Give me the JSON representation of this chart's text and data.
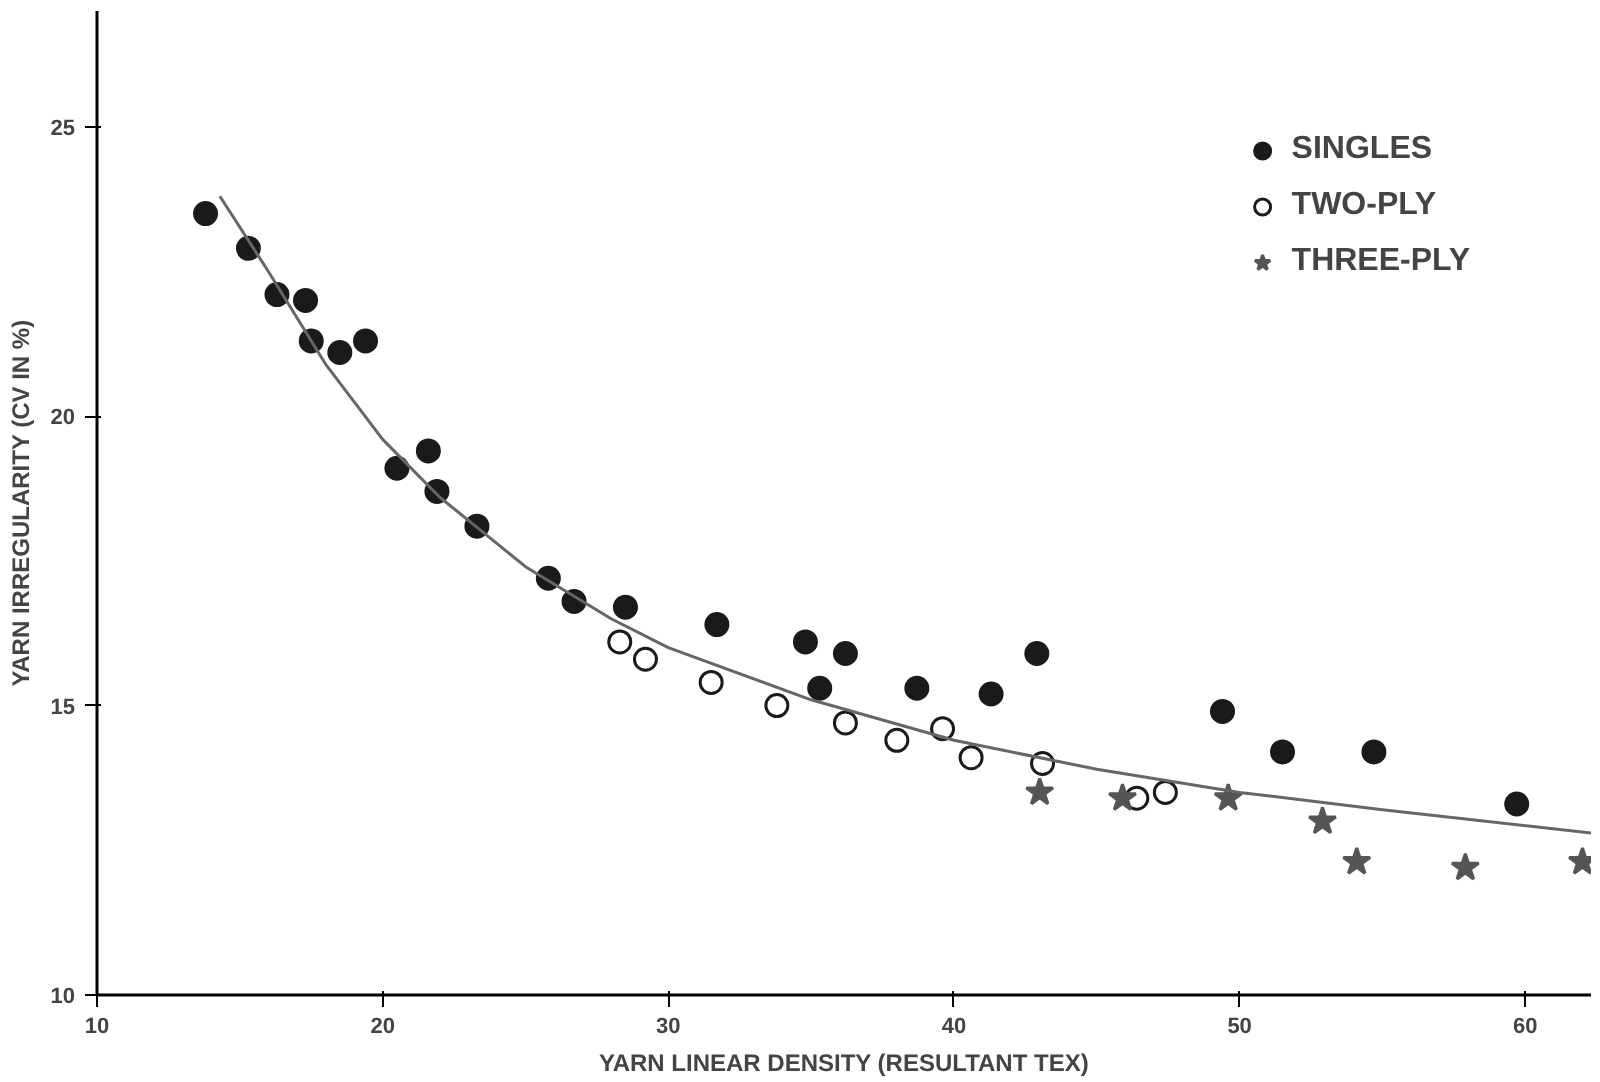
{
  "chart_data": {
    "type": "scatter",
    "xlabel": "YARN LINEAR DENSITY (RESULTANT TEX)",
    "ylabel": "YARN IRREGULARITY (CV IN %)",
    "xlim": [
      10,
      62.3
    ],
    "ylim": [
      10,
      27
    ],
    "xticks": [
      10,
      20,
      30,
      40,
      50,
      60
    ],
    "yticks": [
      10,
      15,
      20,
      25
    ],
    "grid": false,
    "legend": "top right",
    "series": [
      {
        "name": "SINGLES",
        "color": "#1a1a1a",
        "marker": "circle",
        "x": [
          13.8,
          15.3,
          16.3,
          17.3,
          17.5,
          18.5,
          19.4,
          20.5,
          21.6,
          21.9,
          23.3,
          25.8,
          26.7,
          28.5,
          31.7,
          34.8,
          35.3,
          36.2,
          38.7,
          41.3,
          42.9,
          49.4,
          51.5,
          54.7,
          59.7
        ],
        "values": [
          23.5,
          22.9,
          22.1,
          22.0,
          21.3,
          21.1,
          21.3,
          19.1,
          19.4,
          18.7,
          18.1,
          17.2,
          16.8,
          16.7,
          16.4,
          16.1,
          15.3,
          15.9,
          15.3,
          15.2,
          15.9,
          14.9,
          14.2,
          14.2,
          13.3
        ]
      },
      {
        "name": "TWO-PLY",
        "color": "#1a1a1a",
        "marker": "circle_open",
        "x": [
          28.3,
          29.2,
          31.5,
          33.8,
          36.2,
          38.0,
          39.6,
          40.6,
          43.1,
          46.4,
          47.4
        ],
        "values": [
          16.1,
          15.8,
          15.4,
          15.0,
          14.7,
          14.4,
          14.6,
          14.1,
          14.0,
          13.4,
          13.5
        ]
      },
      {
        "name": "THREE-PLY",
        "color": "#555555",
        "marker": "star",
        "x": [
          43.0,
          45.9,
          49.6,
          52.9,
          54.1,
          57.9,
          62.0
        ],
        "values": [
          13.5,
          13.4,
          13.4,
          13.0,
          12.3,
          12.2,
          12.3
        ]
      },
      {
        "type": "line",
        "color": "#666666",
        "line_style": "solid",
        "x": [
          14.3,
          16,
          18,
          20,
          22,
          25,
          28,
          30,
          35,
          40,
          45,
          50,
          55,
          62.3
        ],
        "values": [
          23.8,
          22.5,
          20.9,
          19.6,
          18.6,
          17.4,
          16.5,
          16.0,
          15.1,
          14.4,
          13.9,
          13.5,
          13.2,
          12.8
        ]
      }
    ]
  }
}
